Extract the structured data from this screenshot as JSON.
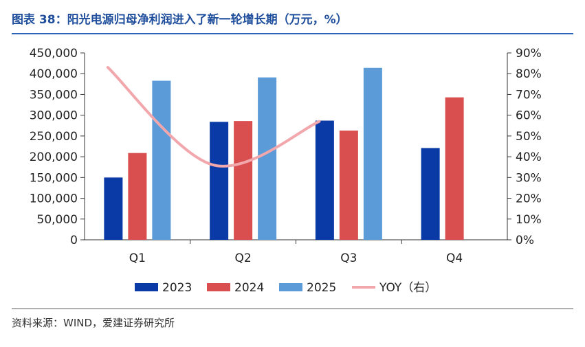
{
  "header": {
    "title": "图表 38：阳光电源归母净利润进入了新一轮增长期（万元，%）"
  },
  "footer": {
    "source": "资料来源：WIND，爱建证券研究所"
  },
  "colors": {
    "s2023": "#0a3aa6",
    "s2024": "#d94f4f",
    "s2025": "#5b9bd8",
    "yoy": "#f2a7ad",
    "axis": "#333333"
  },
  "chart_data": {
    "type": "bar",
    "title": "阳光电源归母净利润进入了新一轮增长期（万元，%）",
    "categories": [
      "Q1",
      "Q2",
      "Q3",
      "Q4"
    ],
    "series": [
      {
        "name": "2023",
        "values": [
          150000,
          284000,
          287000,
          221000
        ]
      },
      {
        "name": "2024",
        "values": [
          209000,
          286000,
          263000,
          343000
        ]
      },
      {
        "name": "2025",
        "values": [
          383000,
          391000,
          414000,
          null
        ]
      }
    ],
    "line_series": {
      "name": "YOY（右）",
      "values": [
        83,
        36,
        57,
        null
      ],
      "axis": "right"
    },
    "ylim": [
      0,
      450000
    ],
    "y_ticks": [
      "0",
      "50,000",
      "100,000",
      "150,000",
      "200,000",
      "250,000",
      "300,000",
      "350,000",
      "400,000",
      "450,000"
    ],
    "y2lim": [
      0,
      90
    ],
    "y2_ticks": [
      "0%",
      "10%",
      "20%",
      "30%",
      "40%",
      "50%",
      "60%",
      "70%",
      "80%",
      "90%"
    ],
    "legend": [
      "2023",
      "2024",
      "2025",
      "YOY（右）"
    ],
    "legend_position": "bottom"
  }
}
